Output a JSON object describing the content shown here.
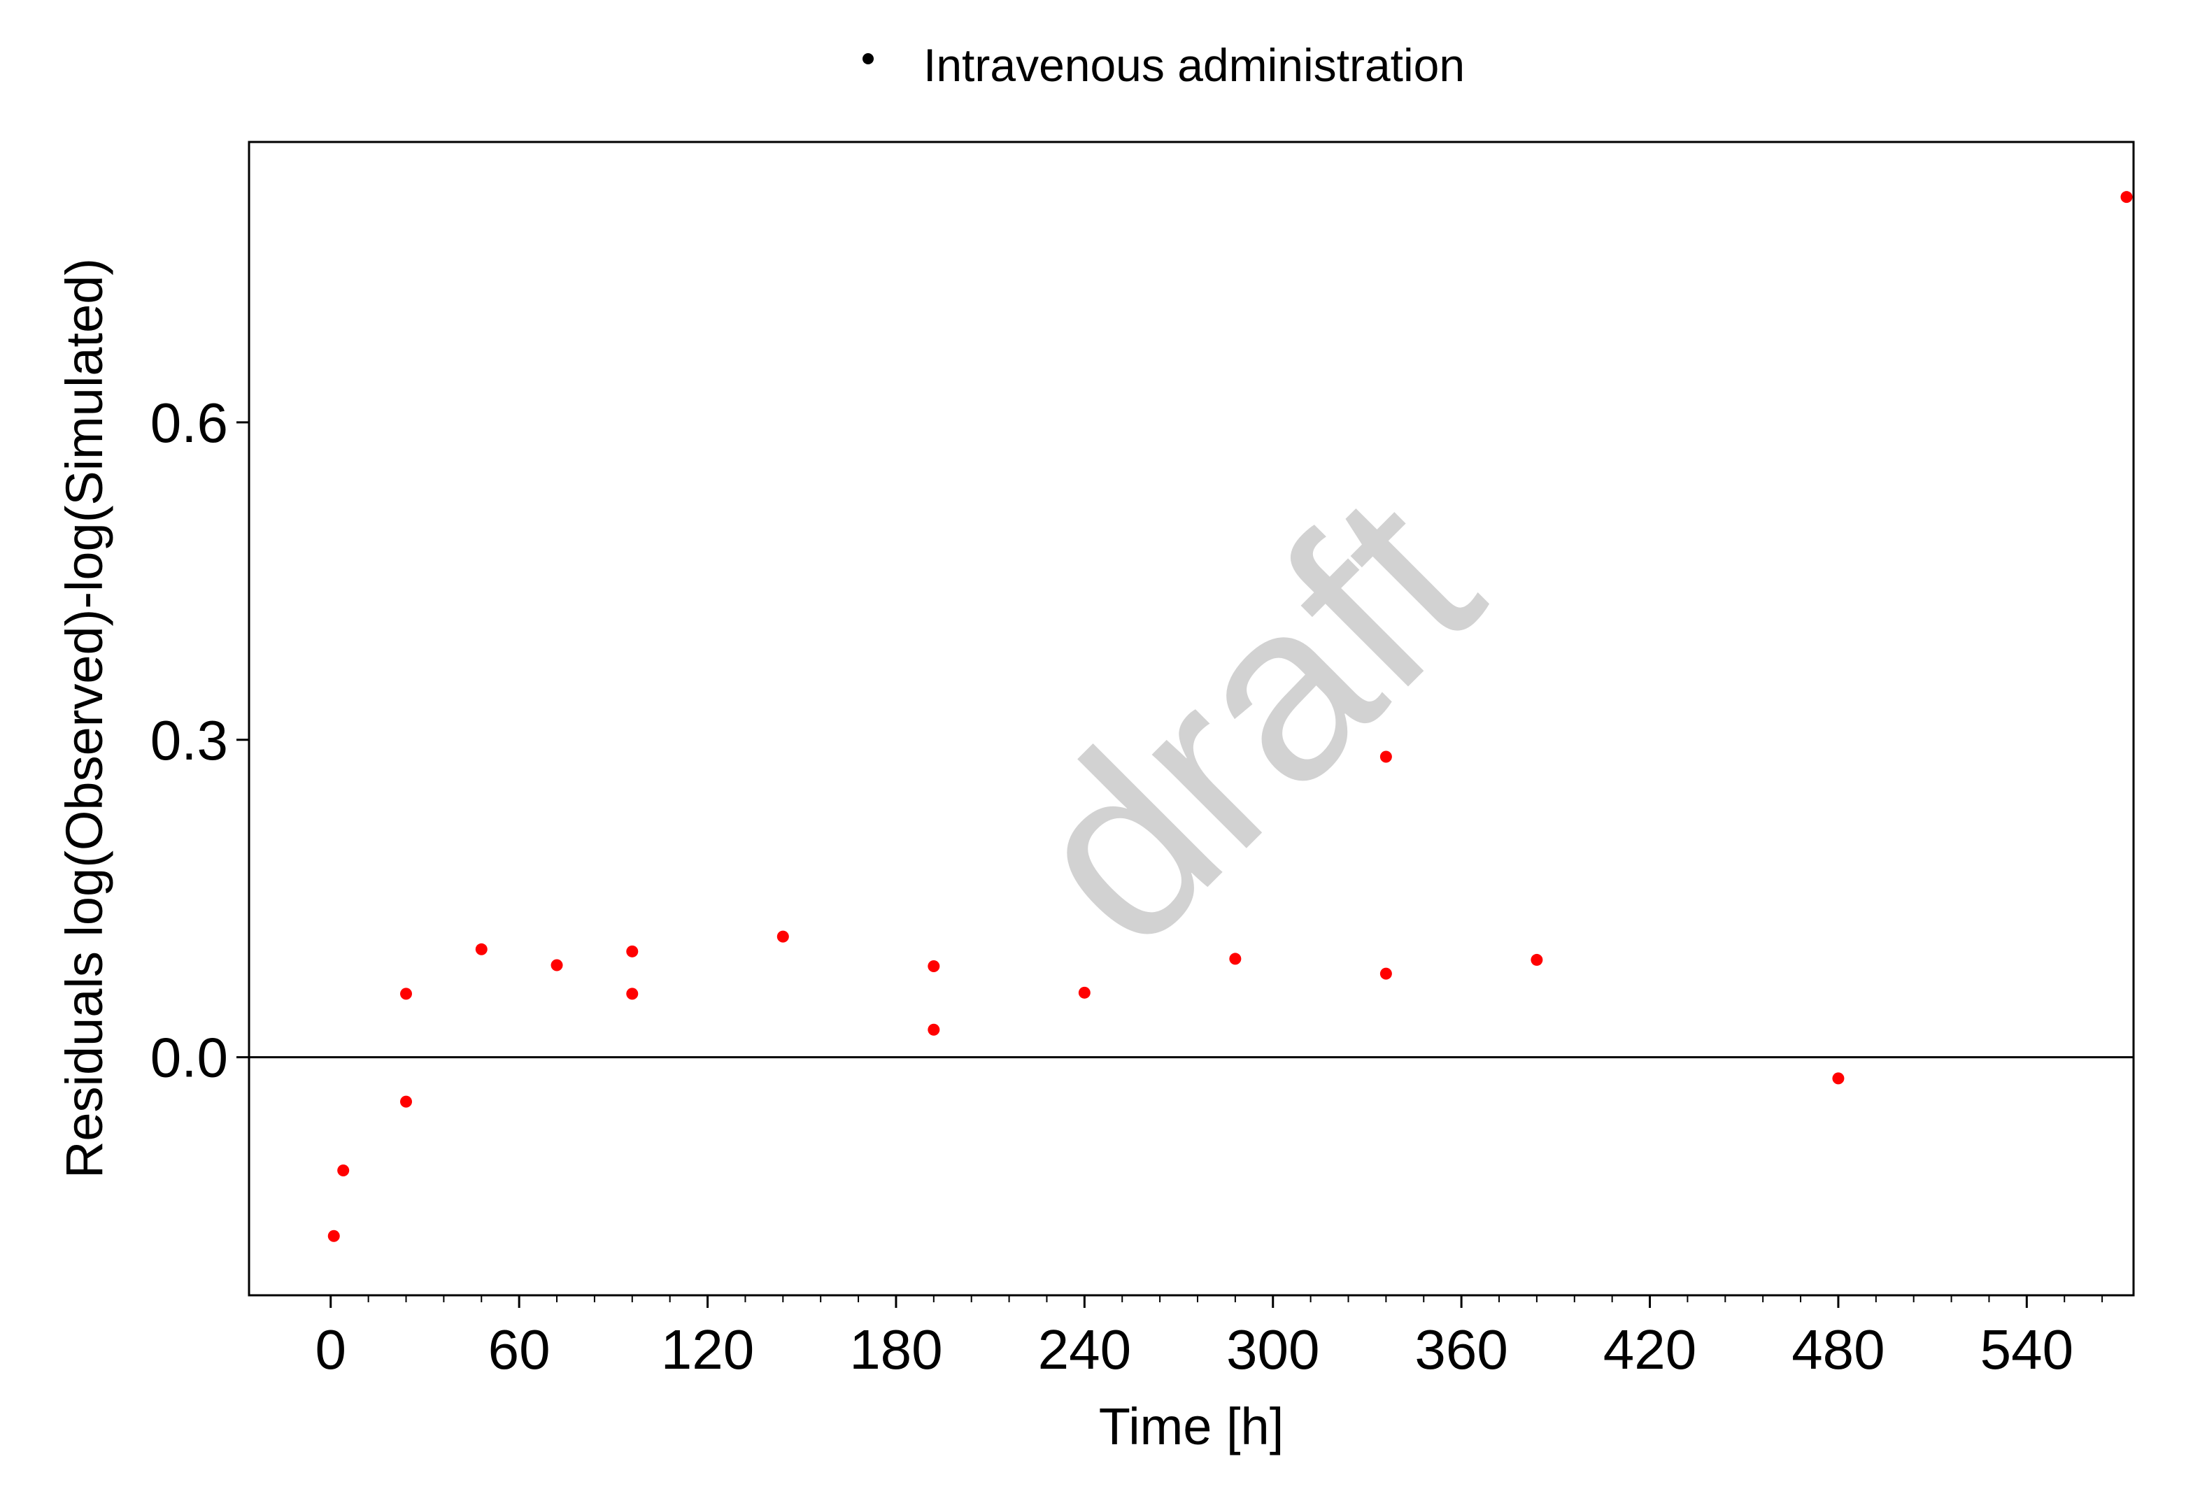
{
  "chart_data": {
    "type": "scatter",
    "xlabel": "Time [h]",
    "ylabel": "Residuals log(Observed)-log(Simulated)",
    "xlim": [
      -26,
      574
    ],
    "ylim": [
      -0.225,
      0.865
    ],
    "x_ticks": [
      0,
      60,
      120,
      180,
      240,
      300,
      360,
      420,
      480,
      540
    ],
    "x_minor_tick_step": 12,
    "y_ticks": [
      0.0,
      0.3,
      0.6
    ],
    "y_tick_labels": [
      "0.0",
      "0.3",
      "0.6"
    ],
    "reference_line_y": 0,
    "legend": {
      "placement": "top-center",
      "entries": [
        "Intravenous administration"
      ],
      "marker_color": "#000000"
    },
    "series": [
      {
        "name": "Intravenous administration",
        "color": "#ff0000",
        "points": [
          {
            "x": 1,
            "y": -0.169
          },
          {
            "x": 4,
            "y": -0.107
          },
          {
            "x": 24,
            "y": 0.06
          },
          {
            "x": 24,
            "y": -0.042
          },
          {
            "x": 48,
            "y": 0.102
          },
          {
            "x": 72,
            "y": 0.087
          },
          {
            "x": 96,
            "y": 0.1
          },
          {
            "x": 96,
            "y": 0.06
          },
          {
            "x": 144,
            "y": 0.114
          },
          {
            "x": 192,
            "y": 0.086
          },
          {
            "x": 192,
            "y": 0.026
          },
          {
            "x": 240,
            "y": 0.061
          },
          {
            "x": 288,
            "y": 0.093
          },
          {
            "x": 336,
            "y": 0.284
          },
          {
            "x": 336,
            "y": 0.079
          },
          {
            "x": 384,
            "y": 0.092
          },
          {
            "x": 480,
            "y": -0.02
          },
          {
            "x": 576,
            "y": 0.813
          }
        ]
      }
    ]
  },
  "watermark": {
    "text": "draft",
    "color": "#d2d2d2"
  }
}
